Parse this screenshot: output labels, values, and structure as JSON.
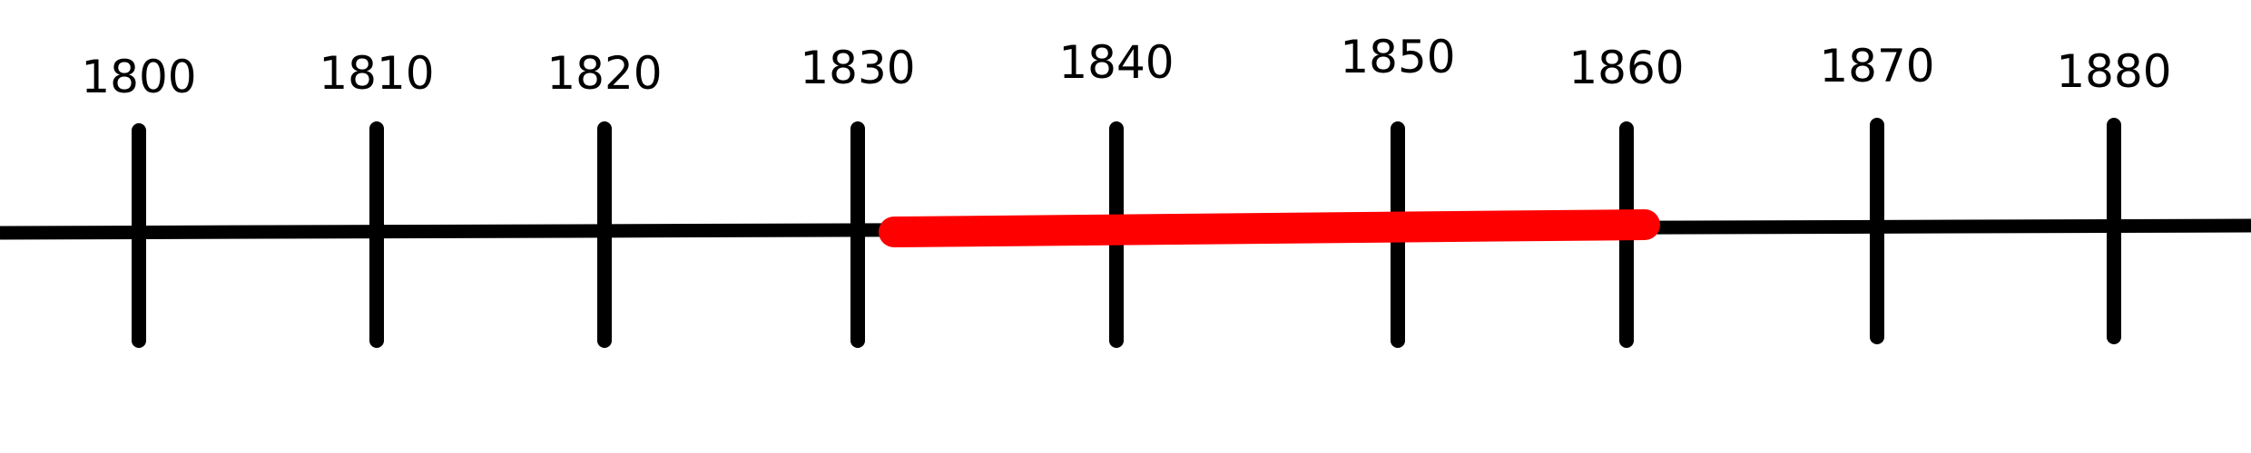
{
  "timeline": {
    "years": [
      "1800",
      "1810",
      "1820",
      "1830",
      "1840",
      "1850",
      "1860",
      "1870",
      "1880"
    ],
    "highlight": {
      "start": "1830",
      "end": "1860"
    },
    "axis_color": "#000000",
    "highlight_color": "#ff0000"
  }
}
